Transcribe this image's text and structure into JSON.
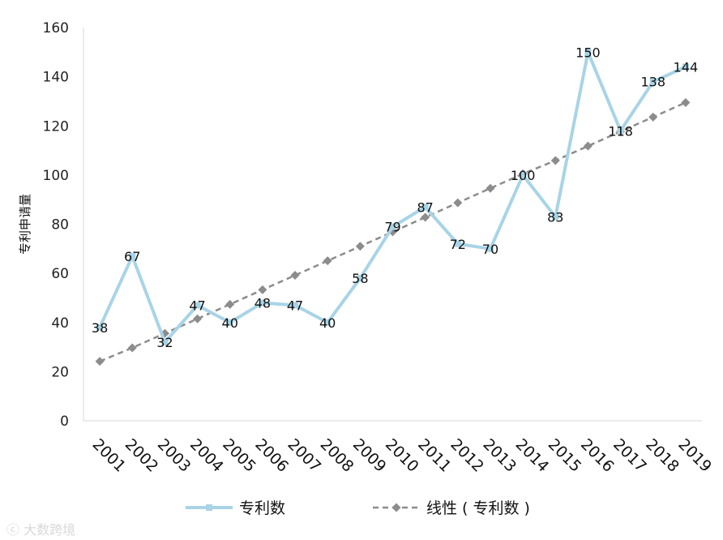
{
  "chart_data": {
    "type": "line",
    "categories": [
      "2001",
      "2002",
      "2003",
      "2004",
      "2005",
      "2006",
      "2007",
      "2008",
      "2009",
      "2010",
      "2011",
      "2012",
      "2013",
      "2014",
      "2015",
      "2016",
      "2017",
      "2018",
      "2019"
    ],
    "series": [
      {
        "name": "专利数",
        "values": [
          38,
          67,
          32,
          47,
          40,
          48,
          47,
          40,
          58,
          79,
          87,
          72,
          70,
          100,
          83,
          150,
          118,
          138,
          144
        ],
        "color": "#a8d4e6",
        "marker": "square"
      },
      {
        "name": "线性 ( 专利数 )",
        "values": [
          24.2,
          29.7,
          35.6,
          41.5,
          47.4,
          53.3,
          59.2,
          65.1,
          71.0,
          76.9,
          82.8,
          88.7,
          94.6,
          100.5,
          105.9,
          111.8,
          117.7,
          123.6,
          129.5
        ],
        "color": "#8c8c8c",
        "marker": "diamond",
        "style": "dashed"
      }
    ],
    "ylabel": "专利申请量",
    "ylim": [
      0,
      160
    ],
    "yticks": [
      0,
      20,
      40,
      60,
      80,
      100,
      120,
      140,
      160
    ],
    "grid": false,
    "legend": "bottom"
  },
  "watermark": "大数跨境"
}
